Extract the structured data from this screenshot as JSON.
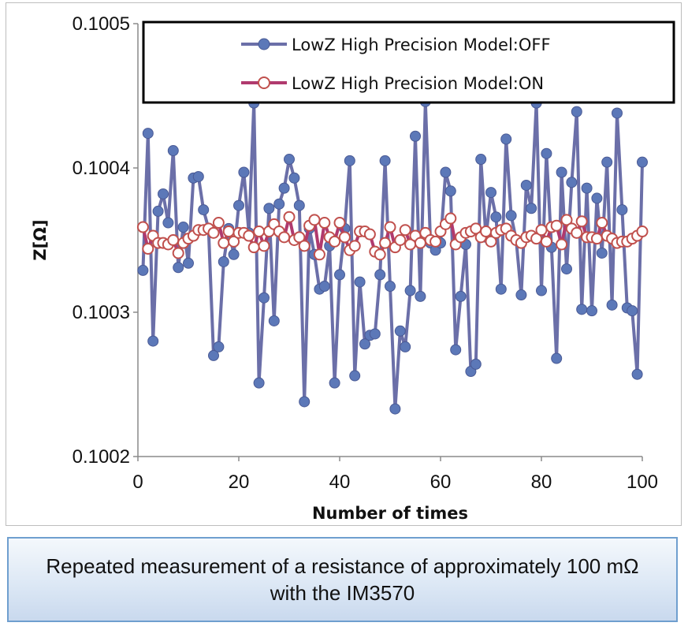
{
  "chart_data": {
    "type": "line",
    "title": "",
    "xlabel": "Number of times",
    "ylabel": "Z[Ω]",
    "xlim": [
      0,
      100
    ],
    "ylim": [
      0.1002,
      0.1005
    ],
    "xticks": [
      "0",
      "20",
      "40",
      "60",
      "80",
      "100"
    ],
    "yticks": [
      "0.1002",
      "0.1003",
      "0.1004",
      "0.1005"
    ],
    "grid": false,
    "legend_position": "top-right",
    "x": [
      1,
      2,
      3,
      4,
      5,
      6,
      7,
      8,
      9,
      10,
      11,
      12,
      13,
      14,
      15,
      16,
      17,
      18,
      19,
      20,
      21,
      22,
      23,
      24,
      25,
      26,
      27,
      28,
      29,
      30,
      31,
      32,
      33,
      34,
      35,
      36,
      37,
      38,
      39,
      40,
      41,
      42,
      43,
      44,
      45,
      46,
      47,
      48,
      49,
      50,
      51,
      52,
      53,
      54,
      55,
      56,
      57,
      58,
      59,
      60,
      61,
      62,
      63,
      64,
      65,
      66,
      67,
      68,
      69,
      70,
      71,
      72,
      73,
      74,
      75,
      76,
      77,
      78,
      79,
      80,
      81,
      82,
      83,
      84,
      85,
      86,
      87,
      88,
      89,
      90,
      91,
      92,
      93,
      94,
      95,
      96,
      97,
      98,
      99,
      100
    ],
    "series": [
      {
        "name": "LowZ High Precision Model:OFF",
        "color": "#6b6fa8",
        "marker_fill": "#5c78b8",
        "values": [
          0.100329,
          0.100424,
          0.10028,
          0.10037,
          0.100382,
          0.100362,
          0.100412,
          0.100331,
          0.100359,
          0.100334,
          0.100393,
          0.100394,
          0.100371,
          0.100358,
          0.10027,
          0.100276,
          0.100335,
          0.100358,
          0.10034,
          0.100374,
          0.100397,
          0.100355,
          0.100445,
          0.100251,
          0.10031,
          0.100372,
          0.100294,
          0.100375,
          0.100386,
          0.100406,
          0.100393,
          0.100374,
          0.100238,
          0.100358,
          0.10034,
          0.100316,
          0.100318,
          0.100346,
          0.100251,
          0.100326,
          0.100358,
          0.100405,
          0.100256,
          0.100321,
          0.100278,
          0.100284,
          0.100285,
          0.100326,
          0.100405,
          0.100318,
          0.100233,
          0.100287,
          0.100276,
          0.100315,
          0.100422,
          0.100311,
          0.100446,
          0.100348,
          0.100343,
          0.100348,
          0.100397,
          0.100384,
          0.100274,
          0.100311,
          0.100347,
          0.100259,
          0.100264,
          0.100406,
          0.100352,
          0.100383,
          0.100366,
          0.100316,
          0.10042,
          0.100367,
          0.10035,
          0.100312,
          0.100388,
          0.100372,
          0.100445,
          0.100315,
          0.10041,
          0.100345,
          0.100268,
          0.100397,
          0.10033,
          0.10039,
          0.100439,
          0.100302,
          0.100386,
          0.100301,
          0.100379,
          0.100341,
          0.100404,
          0.100305,
          0.100438,
          0.100371,
          0.100303,
          0.100301,
          0.100257,
          0.100404
        ]
      },
      {
        "name": "LowZ High Precision Model:ON",
        "color": "#b03a6e",
        "marker_fill": "#ffffff",
        "marker_stroke": "#c0504d",
        "values": [
          0.100359,
          0.100344,
          0.100353,
          0.100348,
          0.100348,
          0.100347,
          0.10035,
          0.100341,
          0.100348,
          0.100351,
          0.100353,
          0.100357,
          0.100357,
          0.100358,
          0.100355,
          0.100362,
          0.100348,
          0.100356,
          0.100349,
          0.100355,
          0.100355,
          0.100353,
          0.100345,
          0.100356,
          0.100346,
          0.100356,
          0.100361,
          0.100356,
          0.100352,
          0.100366,
          0.10035,
          0.100352,
          0.100346,
          0.10036,
          0.100364,
          0.10034,
          0.100362,
          0.100352,
          0.100349,
          0.100362,
          0.100352,
          0.100343,
          0.100346,
          0.100356,
          0.100356,
          0.100354,
          0.100342,
          0.10034,
          0.100348,
          0.100359,
          0.100345,
          0.10035,
          0.100357,
          0.100347,
          0.100353,
          0.100348,
          0.100355,
          0.10035,
          0.100349,
          0.100356,
          0.100361,
          0.100365,
          0.100347,
          0.100352,
          0.100355,
          0.100356,
          0.100358,
          0.100352,
          0.100356,
          0.100349,
          0.100355,
          0.100357,
          0.100358,
          0.100353,
          0.10035,
          0.100348,
          0.100352,
          0.100353,
          0.100351,
          0.100357,
          0.100349,
          0.100359,
          0.10036,
          0.100347,
          0.100364,
          0.100358,
          0.100355,
          0.100363,
          0.100352,
          0.100352,
          0.100351,
          0.100362,
          0.100353,
          0.100351,
          0.100348,
          0.100349,
          0.100349,
          0.100351,
          0.100353,
          0.100356
        ]
      }
    ]
  },
  "caption": {
    "text": "Repeated measurement of a resistance of approximately 100 mΩ\nwith the IM3570"
  }
}
